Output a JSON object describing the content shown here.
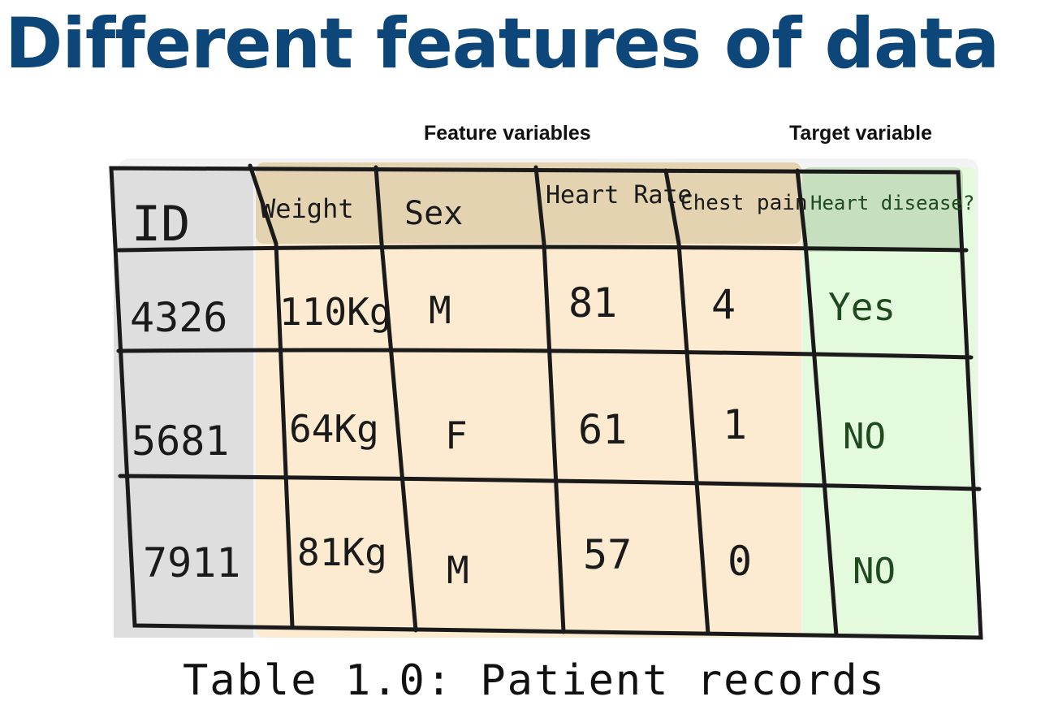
{
  "title": "Different features of data",
  "groups": {
    "feature_label": "Feature variables",
    "target_label": "Target variable"
  },
  "table": {
    "columns": [
      "ID",
      "Weight",
      "Sex",
      "Heart Rate",
      "Chest pain",
      "Heart disease?"
    ],
    "rows": [
      [
        "4326",
        "110Kg",
        "M",
        "81",
        "4",
        "Yes"
      ],
      [
        "5681",
        "64Kg",
        "F",
        "61",
        "1",
        "NO"
      ],
      [
        "7911",
        "81Kg",
        "M",
        "57",
        "0",
        "NO"
      ]
    ]
  },
  "caption": "Table 1.0: Patient records",
  "colors": {
    "title": "#0d4679",
    "id_fill": "#dedede",
    "feature_fill": "#fcebd0",
    "feature_header_fill": "#e3d3b0",
    "target_fill": "#e4fadc",
    "target_header_fill": "#c6dfbf"
  }
}
